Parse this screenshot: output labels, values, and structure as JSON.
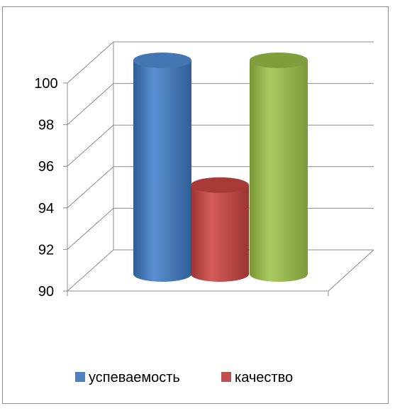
{
  "chart_data": {
    "type": "bar",
    "style": "3d-cylinder",
    "title": "",
    "xlabel": "",
    "ylabel": "",
    "ylim": [
      90,
      100
    ],
    "yticks": [
      "90",
      "92",
      "94",
      "96",
      "98",
      "100"
    ],
    "grid": true,
    "legend_position": "bottom",
    "series": [
      {
        "name": "успеваемость",
        "color": "#4f81bd",
        "values": [
          100
        ]
      },
      {
        "name": "качество",
        "color": "#c0504d",
        "values": [
          94
        ]
      }
    ],
    "extra_bar": {
      "value": 100,
      "color": "#9bbb59"
    }
  }
}
